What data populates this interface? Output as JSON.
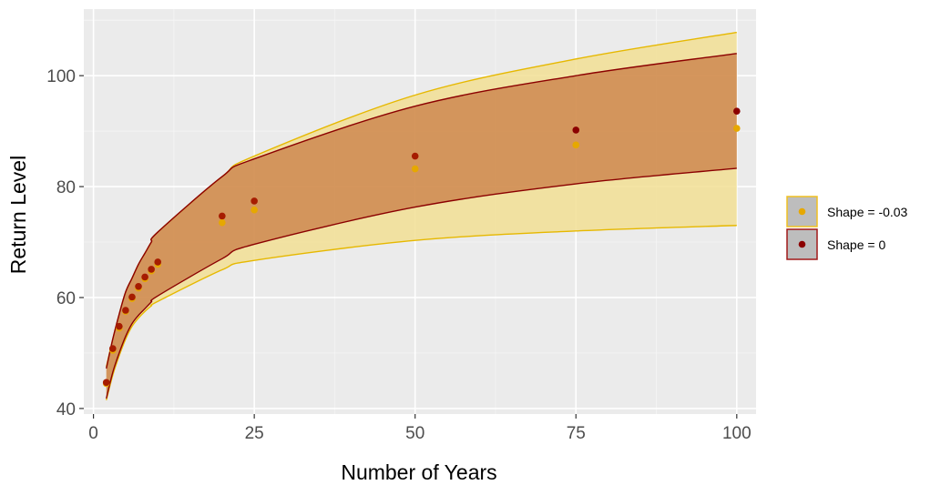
{
  "chart_data": {
    "type": "line",
    "xlabel": "Number of Years",
    "ylabel": "Return Level",
    "xlim": [
      -1.5,
      103
    ],
    "ylim": [
      39,
      112
    ],
    "x_ticks": [
      0,
      25,
      50,
      75,
      100
    ],
    "x_tick_labels": [
      "0",
      "25",
      "50",
      "75",
      "100"
    ],
    "y_ticks": [
      40,
      60,
      80,
      100
    ],
    "y_tick_labels": [
      "40",
      "60",
      "80",
      "100"
    ],
    "grid": true,
    "legend_position": "right",
    "series": [
      {
        "name": "Shape = -0.03",
        "color": "#e6b800",
        "fill": "#f2df94",
        "fill_opacity": 0.85,
        "points": [
          {
            "x": 2,
            "y": 44.5
          },
          {
            "x": 3,
            "y": 50.5
          },
          {
            "x": 4,
            "y": 54.5
          },
          {
            "x": 5,
            "y": 57.5
          },
          {
            "x": 6,
            "y": 59.8
          },
          {
            "x": 7,
            "y": 61.7
          },
          {
            "x": 8,
            "y": 63.4
          },
          {
            "x": 9,
            "y": 64.8
          },
          {
            "x": 10,
            "y": 66.0
          },
          {
            "x": 20,
            "y": 73.5
          },
          {
            "x": 25,
            "y": 75.8
          },
          {
            "x": 50,
            "y": 83.2
          },
          {
            "x": 75,
            "y": 87.5
          },
          {
            "x": 100,
            "y": 90.5
          }
        ],
        "band_upper": [
          {
            "x": 2,
            "y": 47.5
          },
          {
            "x": 3,
            "y": 52.5
          },
          {
            "x": 4,
            "y": 57.0
          },
          {
            "x": 5,
            "y": 61.0
          },
          {
            "x": 6,
            "y": 63.5
          },
          {
            "x": 7,
            "y": 66.0
          },
          {
            "x": 8,
            "y": 68.0
          },
          {
            "x": 9,
            "y": 70.0
          },
          {
            "x": 10,
            "y": 71.8
          },
          {
            "x": 20,
            "y": 81.8
          },
          {
            "x": 25,
            "y": 85.5
          },
          {
            "x": 50,
            "y": 96.5
          },
          {
            "x": 75,
            "y": 103.0
          },
          {
            "x": 100,
            "y": 107.8
          }
        ],
        "band_lower": [
          {
            "x": 2,
            "y": 41.5
          },
          {
            "x": 3,
            "y": 46.0
          },
          {
            "x": 4,
            "y": 49.5
          },
          {
            "x": 5,
            "y": 52.5
          },
          {
            "x": 6,
            "y": 54.8
          },
          {
            "x": 7,
            "y": 56.3
          },
          {
            "x": 8,
            "y": 57.5
          },
          {
            "x": 9,
            "y": 58.5
          },
          {
            "x": 10,
            "y": 59.3
          },
          {
            "x": 20,
            "y": 65.0
          },
          {
            "x": 25,
            "y": 66.7
          },
          {
            "x": 50,
            "y": 70.3
          },
          {
            "x": 75,
            "y": 72.0
          },
          {
            "x": 100,
            "y": 73.0
          }
        ]
      },
      {
        "name": "Shape = 0",
        "color": "#8b0000",
        "fill": "#c0622e",
        "fill_opacity": 0.6,
        "points": [
          {
            "x": 2,
            "y": 44.7
          },
          {
            "x": 3,
            "y": 50.8
          },
          {
            "x": 4,
            "y": 54.8
          },
          {
            "x": 5,
            "y": 57.7
          },
          {
            "x": 6,
            "y": 60.1
          },
          {
            "x": 7,
            "y": 62.0
          },
          {
            "x": 8,
            "y": 63.7
          },
          {
            "x": 9,
            "y": 65.1
          },
          {
            "x": 10,
            "y": 66.4
          },
          {
            "x": 20,
            "y": 74.7
          },
          {
            "x": 25,
            "y": 77.4
          },
          {
            "x": 50,
            "y": 85.5
          },
          {
            "x": 75,
            "y": 90.2
          },
          {
            "x": 100,
            "y": 93.6
          }
        ],
        "band_upper": [
          {
            "x": 2,
            "y": 47.2
          },
          {
            "x": 3,
            "y": 52.5
          },
          {
            "x": 4,
            "y": 57.0
          },
          {
            "x": 5,
            "y": 61.0
          },
          {
            "x": 6,
            "y": 63.5
          },
          {
            "x": 7,
            "y": 66.0
          },
          {
            "x": 8,
            "y": 68.0
          },
          {
            "x": 9,
            "y": 70.0
          },
          {
            "x": 10,
            "y": 71.8
          },
          {
            "x": 20,
            "y": 81.8
          },
          {
            "x": 25,
            "y": 85.0
          },
          {
            "x": 50,
            "y": 94.5
          },
          {
            "x": 75,
            "y": 100.0
          },
          {
            "x": 100,
            "y": 104.0
          }
        ],
        "band_lower": [
          {
            "x": 2,
            "y": 41.8
          },
          {
            "x": 3,
            "y": 46.5
          },
          {
            "x": 4,
            "y": 50.0
          },
          {
            "x": 5,
            "y": 53.0
          },
          {
            "x": 6,
            "y": 55.3
          },
          {
            "x": 7,
            "y": 56.8
          },
          {
            "x": 8,
            "y": 58.0
          },
          {
            "x": 9,
            "y": 59.2
          },
          {
            "x": 10,
            "y": 60.3
          },
          {
            "x": 20,
            "y": 67.0
          },
          {
            "x": 25,
            "y": 69.6
          },
          {
            "x": 50,
            "y": 76.3
          },
          {
            "x": 75,
            "y": 80.5
          },
          {
            "x": 100,
            "y": 83.3
          }
        ]
      }
    ]
  },
  "legend": {
    "items": [
      {
        "label": "Shape = -0.03",
        "dot_color": "#e6a800",
        "border_color": "#f0c020"
      },
      {
        "label": "Shape = 0",
        "dot_color": "#8b0000",
        "border_color": "#a01818"
      }
    ]
  },
  "colors": {
    "panel_background": "#ebebeb",
    "grid_major": "#ffffff",
    "tick_color": "#333333"
  }
}
